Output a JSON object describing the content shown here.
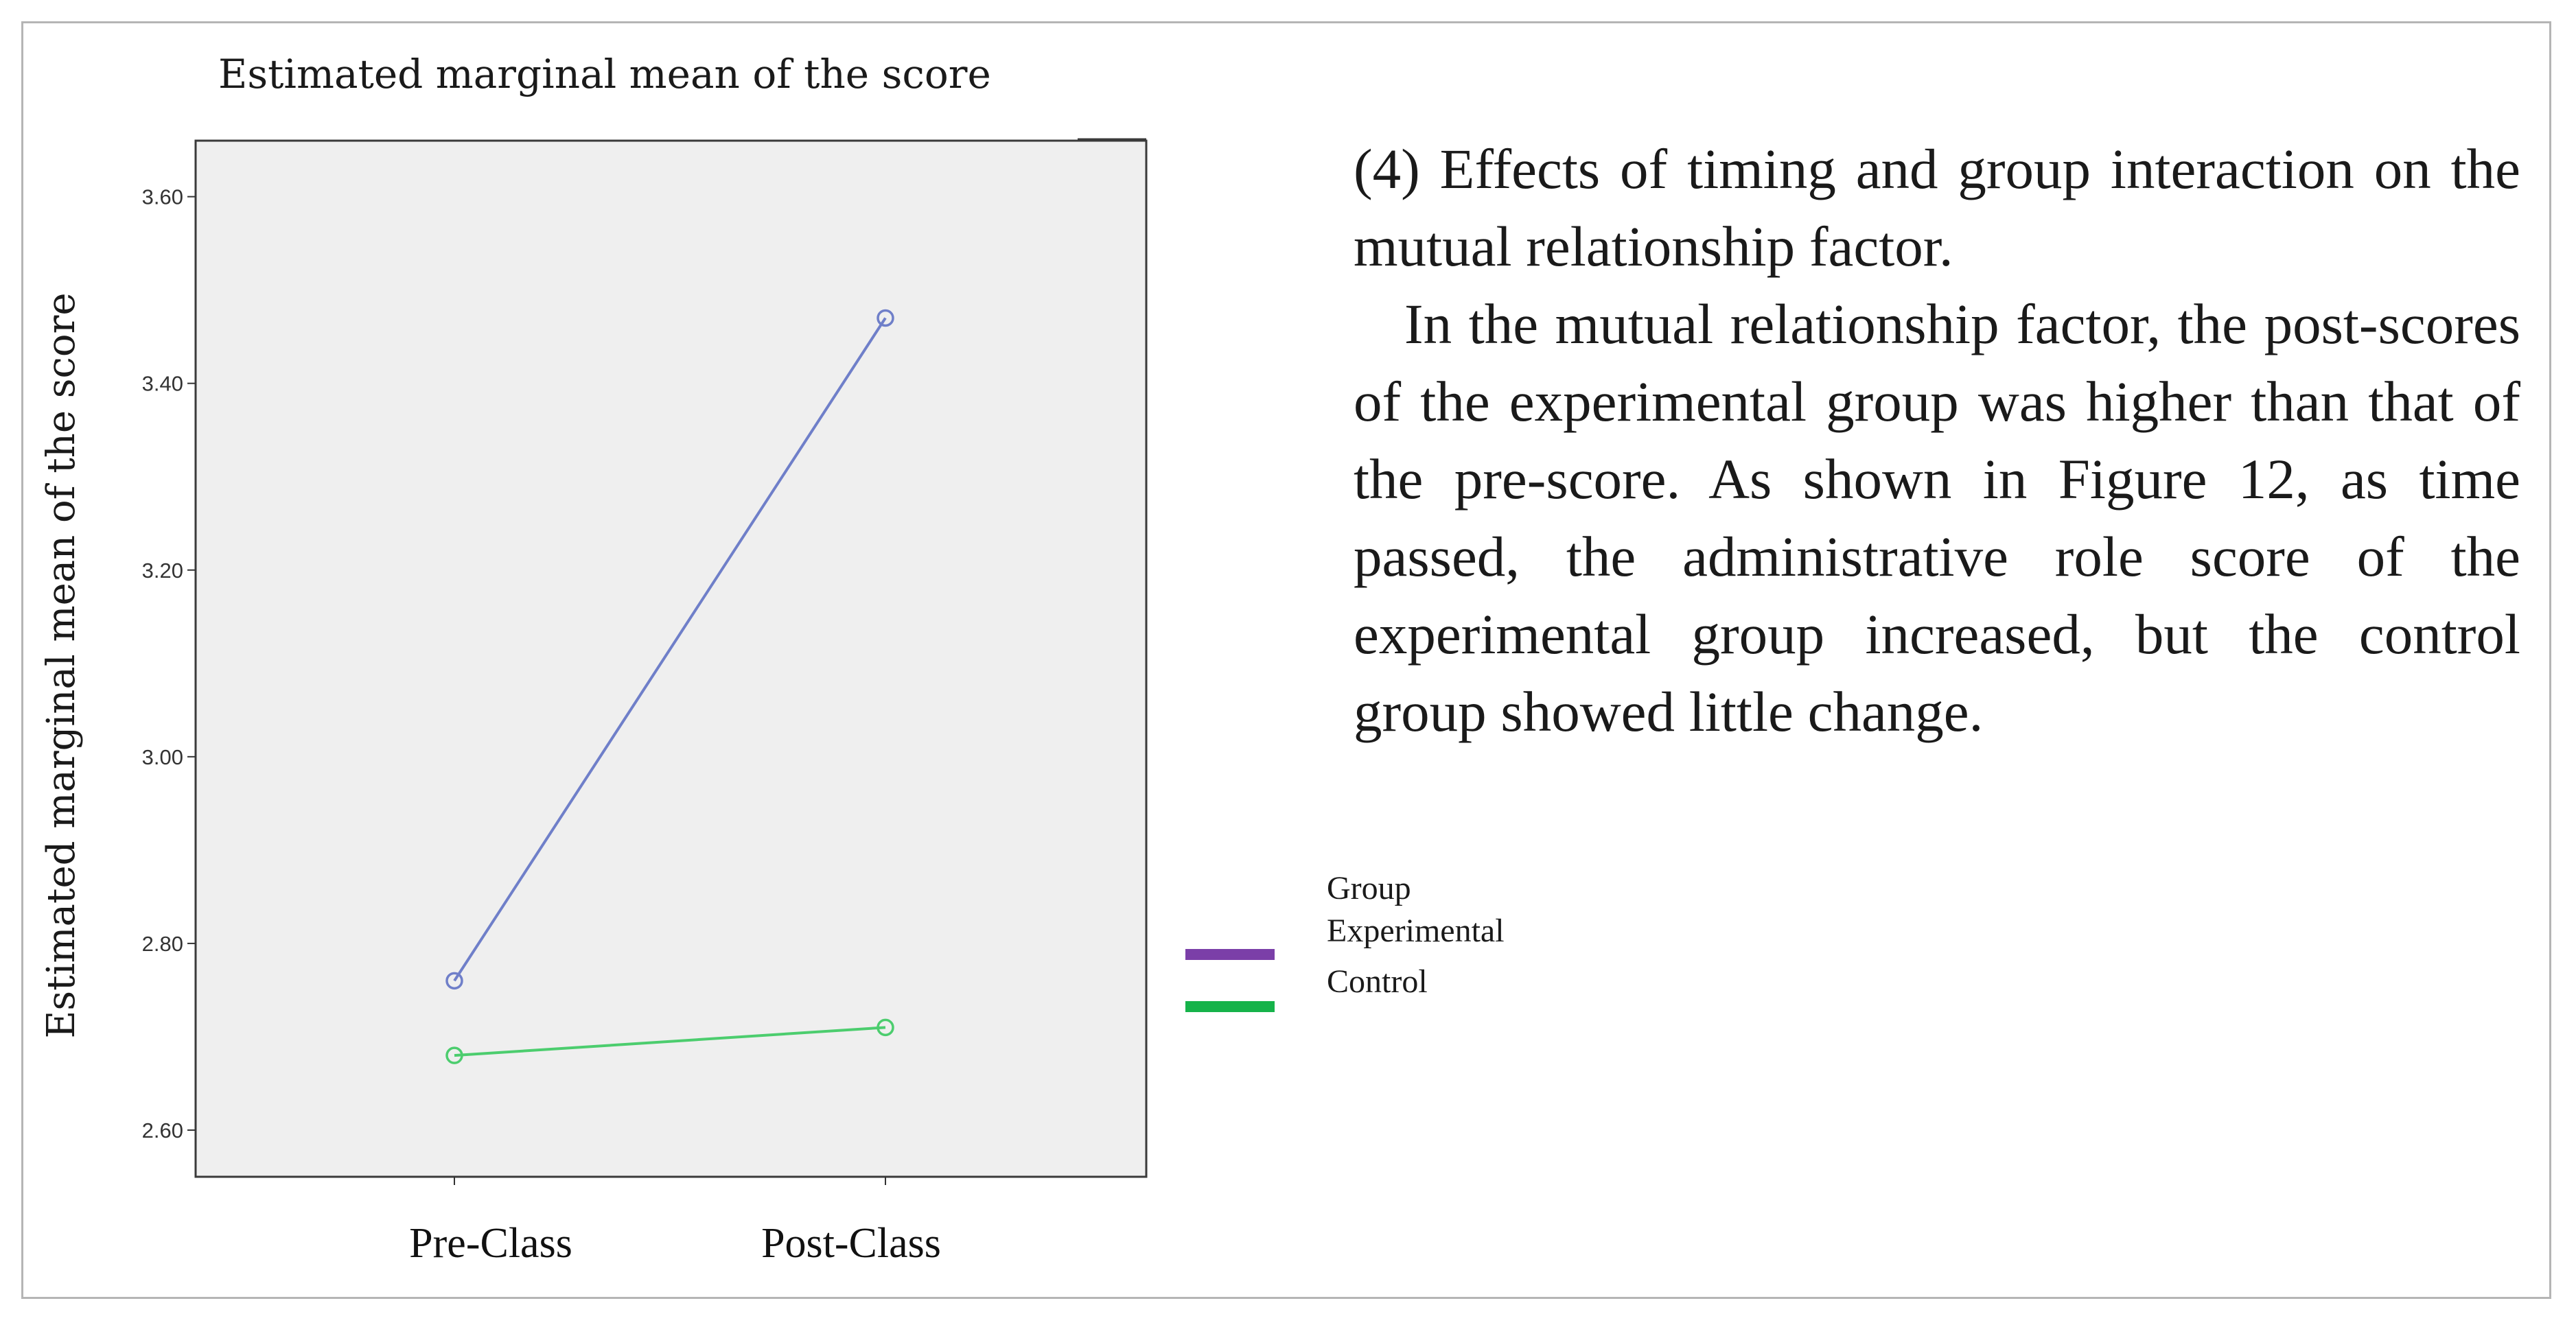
{
  "chart_data": {
    "type": "line",
    "title": "Estimated marginal mean of the score",
    "ylabel": "Estimated marginal mean of the score",
    "xlabel": "",
    "categories": [
      "Pre-Class",
      "Post-Class"
    ],
    "ylim": [
      2.55,
      3.66
    ],
    "yticks": [
      "3.60",
      "3.40",
      "3.20",
      "3.00",
      "2.80",
      "2.60"
    ],
    "ytick_values": [
      3.6,
      3.4,
      3.2,
      3.0,
      2.8,
      2.6
    ],
    "grid": false,
    "legend_position": "right",
    "legend_title": "Group",
    "series": [
      {
        "name": "Experimental",
        "values": [
          2.76,
          3.47
        ],
        "line_color": "#6f7fc9",
        "legend_color": "#7b3fa8"
      },
      {
        "name": "Control",
        "values": [
          2.68,
          2.71
        ],
        "line_color": "#4ccd6e",
        "legend_color": "#16b34a"
      }
    ],
    "plot_background": "#efefef"
  },
  "text": {
    "heading": "(4) Effects of timing and group interaction on the mutual relationship factor.",
    "paragraph": "In the mutual relationship factor, the post-scores of the experimental group was higher than that of the pre-score. As shown in Figure 12, as time passed, the administrative role score of the experimental group increased, but the control group showed little change."
  }
}
